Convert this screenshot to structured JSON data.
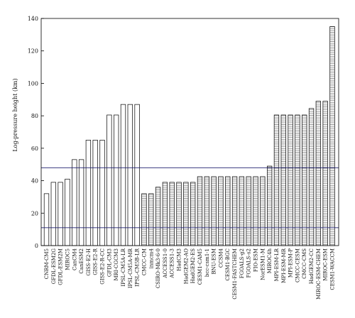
{
  "chart_data": {
    "type": "bar",
    "title": "",
    "xlabel": "",
    "ylabel": "Log-pressure height (km)",
    "ylim": [
      0,
      140
    ],
    "yticks": [
      0,
      20,
      40,
      60,
      80,
      100,
      120,
      140
    ],
    "grid": false,
    "reference_lines": [
      11,
      48
    ],
    "categories": [
      "CNRM-CM5",
      "GFDL-ESM2G",
      "GFDL-ESM2M",
      "MIROC5",
      "CanCM4",
      "CanESM2",
      "GISS-E2-H",
      "GISS-E2-R",
      "GISS-E2-R-CC",
      "GFDL-CM3",
      "MRI-CGCM3",
      "IPSL-CM5A-LR",
      "IPSL-CM5A-MR",
      "IPSL-CM5B-LR",
      "CMCC-CM",
      "inmcm4",
      "CSIRO-Mk3-6-0",
      "ACCESS1-0",
      "ACCESS1-3",
      "HadCM3",
      "HadGEM2-AO",
      "HadGEM2-ES",
      "CESM1-CAM5",
      "bcc-csm1-1",
      "BNU-ESM",
      "CCSM4",
      "CESM1-BGC",
      "CESM1-FASTCHEM",
      "FGOALS-g2",
      "FGOALS-s2",
      "FIO-ESM",
      "NorESM1-M",
      "MIROC4h",
      "MPI-ESM-LR",
      "MPI-ESM-MR",
      "MPI-ESM-P",
      "CMCC-CESM",
      "CMCC-CMS",
      "HadGEM2-CC",
      "MIROC-ESM-CHEM",
      "MIROC-ESM",
      "CESM1-WACCM"
    ],
    "values": [
      32,
      39,
      39,
      41,
      53,
      53,
      65,
      65,
      65,
      80.5,
      80.5,
      87,
      87,
      87,
      32,
      32,
      36,
      39,
      39,
      39,
      39,
      39,
      42.5,
      42.5,
      42.5,
      42.5,
      42.5,
      42.5,
      42.5,
      42.5,
      42.5,
      42.5,
      49,
      80.5,
      80.5,
      80.5,
      80.5,
      80.5,
      84.5,
      89,
      89,
      135
    ]
  }
}
